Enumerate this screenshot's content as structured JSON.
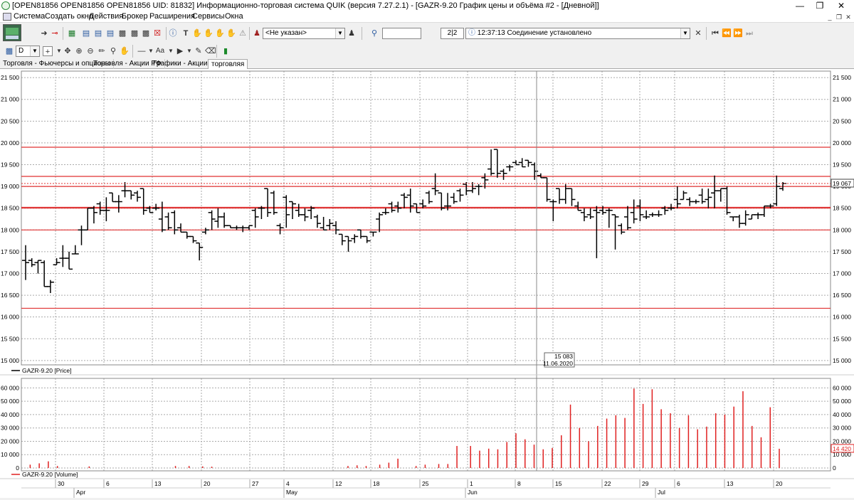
{
  "window": {
    "title": "[OPEN81856 OPEN81856 OPEN81856 UID: 81832] Информационно-торговая система QUIK (версия 7.27.2.1) - [GAZR-9.20 График цены и объёма #2 - [Дневной]]"
  },
  "menu": {
    "items": [
      "Система",
      "Создать окно",
      "Действия",
      "Брокер",
      "Расширения",
      "Сервисы",
      "Окна"
    ]
  },
  "toolbar": {
    "account_select": "<Не указан>",
    "search_value": "",
    "counter": "2|2",
    "status_time": "12:37:13",
    "status_text": "Соединение установлено",
    "interval": "D"
  },
  "tabs": [
    "Торговля - Фьючерсы и опционы",
    "Торговля - Акции РФ",
    "Графики - Акции РФ",
    "торговляя"
  ],
  "active_tab": 3,
  "colors": {
    "support_lines": "#e03030",
    "volume": "#e02020",
    "price": "#000000"
  },
  "chart_data": [
    {
      "type": "ohlc",
      "legend": "GAZR-9.20 [Price]",
      "ylim": [
        14900,
        21600
      ],
      "yticks": [
        "15 000",
        "15 500",
        "16 000",
        "16 500",
        "17 000",
        "17 500",
        "18 000",
        "18 500",
        "19 000",
        "19 500",
        "20 000",
        "20 500",
        "21 000",
        "21 500"
      ],
      "ytick_values": [
        15000,
        15500,
        16000,
        16500,
        17000,
        17500,
        18000,
        18500,
        19000,
        19500,
        20000,
        20500,
        21000,
        21500
      ],
      "last_price_label": "19 067",
      "last_price": 19067,
      "cursor": {
        "value": "15 083",
        "date": "11.06.2020"
      },
      "horizontal_levels": [
        16200,
        18000,
        18500,
        18520,
        19000,
        19230,
        19900
      ],
      "ohlc": [
        [
          17300,
          17650,
          16850,
          17250
        ],
        [
          17300,
          17350,
          17150,
          17200
        ],
        [
          17250,
          17300,
          17000,
          17300
        ],
        [
          17250,
          17300,
          16700,
          16700
        ],
        [
          16700,
          16850,
          16550,
          16800
        ],
        [
          17200,
          17350,
          17200,
          17250
        ],
        [
          17350,
          17650,
          17150,
          17350
        ],
        [
          17350,
          17500,
          17100,
          17100
        ],
        [
          17450,
          17650,
          17450,
          17450
        ],
        [
          18000,
          18100,
          17650,
          18000
        ],
        [
          18000,
          18500,
          18000,
          18500
        ],
        [
          18500,
          18550,
          18150,
          18400
        ],
        [
          18600,
          18650,
          18350,
          18450
        ],
        [
          18450,
          18750,
          18200,
          18450
        ],
        [
          18850,
          18850,
          18650,
          18650
        ],
        [
          18650,
          18800,
          18400,
          18650
        ],
        [
          18900,
          19100,
          18750,
          18900
        ],
        [
          18900,
          18900,
          18700,
          18800
        ],
        [
          18850,
          18900,
          18650,
          18750
        ],
        [
          18950,
          18950,
          18350,
          18450
        ],
        [
          18500,
          18550,
          18400,
          18400
        ],
        [
          18500,
          18600,
          18450,
          18500
        ],
        [
          18250,
          18650,
          17950,
          18000
        ],
        [
          18300,
          18400,
          18000,
          18050
        ],
        [
          18400,
          18450,
          17900,
          18000
        ],
        [
          18050,
          18150,
          17950,
          17950
        ],
        [
          17950,
          17950,
          17800,
          17850
        ],
        [
          17850,
          17850,
          17700,
          17750
        ],
        [
          17700,
          17700,
          17300,
          17600
        ],
        [
          17950,
          18050,
          17900,
          18000
        ],
        [
          18400,
          18450,
          18000,
          18250
        ],
        [
          18200,
          18500,
          18050,
          18300
        ],
        [
          18300,
          18400,
          18050,
          18100
        ],
        [
          18100,
          18100,
          18050,
          18050
        ],
        [
          18050,
          18100,
          18000,
          18050
        ],
        [
          18050,
          18100,
          17950,
          18050
        ],
        [
          18050,
          18100,
          18000,
          18100
        ],
        [
          18450,
          18500,
          18050,
          18300
        ],
        [
          18500,
          18550,
          18250,
          18500
        ],
        [
          18950,
          18950,
          18300,
          18400
        ],
        [
          18850,
          18900,
          18350,
          18400
        ],
        [
          18100,
          18150,
          17900,
          18050
        ],
        [
          18750,
          18800,
          18050,
          18350
        ],
        [
          18650,
          18650,
          18250,
          18600
        ],
        [
          18450,
          18600,
          18300,
          18350
        ],
        [
          18350,
          18500,
          18200,
          18300
        ],
        [
          18450,
          18550,
          18250,
          18500
        ],
        [
          18300,
          18350,
          18050,
          18150
        ],
        [
          18050,
          18300,
          18000,
          18000
        ],
        [
          18100,
          18250,
          18000,
          18150
        ],
        [
          18100,
          18200,
          17900,
          18000
        ],
        [
          17900,
          17900,
          17650,
          17750
        ],
        [
          17850,
          17850,
          17500,
          17750
        ],
        [
          17800,
          17900,
          17700,
          17850
        ],
        [
          18000,
          18000,
          17800,
          17850
        ],
        [
          17850,
          17850,
          17700,
          17750
        ],
        [
          17950,
          17950,
          17850,
          17950
        ],
        [
          18250,
          18400,
          17950,
          18350
        ],
        [
          18400,
          18500,
          18350,
          18400
        ],
        [
          18600,
          18650,
          18400,
          18450
        ],
        [
          18550,
          18650,
          18400,
          18500
        ],
        [
          18800,
          18850,
          18500,
          18750
        ],
        [
          18800,
          18950,
          18400,
          18550
        ],
        [
          18600,
          18600,
          18400,
          18400
        ],
        [
          18600,
          18700,
          18500,
          18550
        ],
        [
          18850,
          18900,
          18600,
          18650
        ],
        [
          18950,
          19300,
          18800,
          18900
        ],
        [
          18850,
          18850,
          18450,
          18500
        ],
        [
          18550,
          18850,
          18450,
          18550
        ],
        [
          18750,
          18850,
          18600,
          18650
        ],
        [
          18900,
          18950,
          18650,
          18800
        ],
        [
          19050,
          19100,
          18800,
          18900
        ],
        [
          18900,
          19100,
          18850,
          18950
        ],
        [
          19000,
          19050,
          18800,
          19000
        ],
        [
          19200,
          19300,
          18950,
          19150
        ],
        [
          19400,
          19850,
          19250,
          19300
        ],
        [
          19850,
          19850,
          19200,
          19300
        ],
        [
          19350,
          19400,
          19150,
          19300
        ],
        [
          19450,
          19500,
          19350,
          19450
        ],
        [
          19550,
          19600,
          19500,
          19500
        ],
        [
          19550,
          19650,
          19450,
          19450
        ],
        [
          19600,
          19600,
          19450,
          19550
        ],
        [
          19500,
          19550,
          19150,
          19350
        ],
        [
          19250,
          19300,
          19200,
          19200
        ],
        [
          19200,
          19200,
          18650,
          18700
        ],
        [
          18650,
          18700,
          18200,
          18650
        ],
        [
          18950,
          18950,
          18600,
          18700
        ],
        [
          18700,
          19050,
          18600,
          18950
        ],
        [
          18950,
          18950,
          18550,
          18700
        ],
        [
          18550,
          18650,
          18450,
          18450
        ],
        [
          18400,
          18500,
          18200,
          18300
        ],
        [
          18350,
          18500,
          18250,
          18300
        ],
        [
          18450,
          18550,
          17350,
          18400
        ],
        [
          18450,
          18550,
          18350,
          18400
        ],
        [
          18450,
          18500,
          18050,
          18450
        ],
        [
          18350,
          18350,
          17550,
          18300
        ],
        [
          18100,
          18150,
          17900,
          17950
        ],
        [
          18300,
          18550,
          18000,
          18050
        ],
        [
          18400,
          18700,
          18150,
          18250
        ],
        [
          18550,
          18700,
          18200,
          18350
        ],
        [
          18300,
          18450,
          18250,
          18300
        ],
        [
          18350,
          18400,
          18300,
          18350
        ],
        [
          18350,
          18450,
          18300,
          18350
        ],
        [
          18500,
          18550,
          18350,
          18450
        ],
        [
          18500,
          18600,
          18450,
          18500
        ],
        [
          18700,
          19000,
          18500,
          18600
        ],
        [
          18700,
          18900,
          18700,
          18850
        ],
        [
          18700,
          18750,
          18550,
          18650
        ],
        [
          18650,
          18700,
          18600,
          18650
        ],
        [
          18800,
          18950,
          18600,
          18650
        ],
        [
          18700,
          18950,
          18500,
          18750
        ],
        [
          18850,
          19250,
          18500,
          18900
        ],
        [
          18900,
          18950,
          18650,
          18950
        ],
        [
          18950,
          19000,
          18350,
          18400
        ],
        [
          18300,
          18300,
          18200,
          18300
        ],
        [
          18300,
          18350,
          18050,
          18150
        ],
        [
          18150,
          18450,
          18100,
          18350
        ],
        [
          18250,
          18350,
          18250,
          18350
        ],
        [
          18350,
          18400,
          18250,
          18350
        ],
        [
          18350,
          18550,
          18300,
          18550
        ],
        [
          18550,
          18600,
          18500,
          18550
        ],
        [
          18600,
          19250,
          18550,
          19000
        ],
        [
          18950,
          19100,
          18900,
          19067
        ]
      ]
    },
    {
      "type": "bar",
      "legend": "GAZR-9.20 [Volume]",
      "ylim": [
        0,
        65000
      ],
      "yticks": [
        "0",
        "10 000",
        "20 000",
        "30 000",
        "40 000",
        "50 000",
        "60 000"
      ],
      "ytick_values": [
        0,
        10000,
        20000,
        30000,
        40000,
        50000,
        60000
      ],
      "last_volume_label": "14 420",
      "last_volume": 14420,
      "values": [
        0,
        2500,
        0,
        3500,
        0,
        5000,
        0,
        1500,
        0,
        0,
        0,
        0,
        0,
        0,
        1200,
        0,
        0,
        0,
        0,
        0,
        0,
        0,
        0,
        0,
        0,
        0,
        0,
        0,
        0,
        0,
        0,
        0,
        0,
        1500,
        0,
        0,
        1500,
        0,
        0,
        1200,
        0,
        1000,
        0,
        0,
        0,
        0,
        0,
        0,
        0,
        0,
        0,
        0,
        0,
        0,
        0,
        0,
        0,
        0,
        0,
        0,
        0,
        0,
        0,
        0,
        0,
        0,
        0,
        0,
        0,
        0,
        0,
        1500,
        0,
        2000,
        0,
        1500,
        0,
        0,
        2500,
        0,
        4000,
        0,
        7000,
        0,
        0,
        0,
        1500,
        0,
        2500,
        0,
        0,
        3000,
        0,
        3000,
        0,
        16500,
        0,
        0,
        16500,
        0,
        13000,
        0,
        14500,
        0,
        14000,
        0,
        19500,
        0,
        26000,
        0,
        21500,
        0,
        17500,
        0,
        14000,
        0,
        15000,
        0,
        24500,
        0,
        47500,
        0,
        30000,
        0,
        20000,
        0,
        31500,
        0,
        37000,
        0,
        39500,
        0,
        37500,
        0,
        59500,
        0,
        48000,
        0,
        59000,
        0,
        44000,
        0,
        41000,
        0,
        30000,
        0,
        39500,
        0,
        29000,
        0,
        31000,
        0,
        41000,
        0,
        40000,
        0,
        46000,
        0,
        57500,
        0,
        31500,
        0,
        23000,
        0,
        45500,
        0,
        14420
      ],
      "x_labels": [
        "30",
        "6",
        "13",
        "20",
        "27",
        "4",
        "12",
        "18",
        "25",
        "1",
        "8",
        "15",
        "22",
        "29",
        "6",
        "13",
        "20"
      ],
      "month_labels": [
        "Apr",
        "May",
        "Jun",
        "Jul"
      ]
    }
  ]
}
